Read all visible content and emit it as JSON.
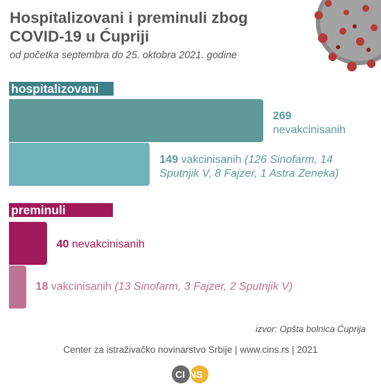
{
  "header": {
    "title": "Hospitalizovani i preminuli zbog COVID-19 u Ćupriji",
    "subtitle": "od početka septembra do 25. oktobra 2021. godine"
  },
  "colors": {
    "hosp_unvax": "#5e9898",
    "hosp_vax": "#6fb2b7",
    "dead_unvax": "#a2195a",
    "dead_vax": "#be7391",
    "hosp_label_bg": "#3f8189",
    "dead_label_bg": "#a2195a"
  },
  "chart_data": {
    "type": "bar",
    "orientation": "horizontal",
    "groups": [
      {
        "name": "hospitalizovani",
        "bars": [
          {
            "value": 269,
            "value_text": "269",
            "label": "nevakcinisanih",
            "detail": ""
          },
          {
            "value": 149,
            "value_text": "149",
            "label": "vakcinisanih",
            "detail": "(126 Sinofarm, 14 Sputnjik V, 8 Fajzer, 1 Astra Zeneka)"
          }
        ]
      },
      {
        "name": "preminuli",
        "bars": [
          {
            "value": 40,
            "value_text": "40",
            "label": "nevakcinisanih",
            "detail": ""
          },
          {
            "value": 18,
            "value_text": "18",
            "label": "vakcinisanih",
            "detail": "(13 Sinofarm, 3 Fajzer, 2 Sputnjik V)"
          }
        ]
      }
    ]
  },
  "source": "izvor: Opšta bolnica Ćuprija",
  "footer": "Center za istraživačko novinarstvo Srbije | www.cins.rs | 2021",
  "logo": {
    "left": "CI",
    "right": "NS"
  }
}
